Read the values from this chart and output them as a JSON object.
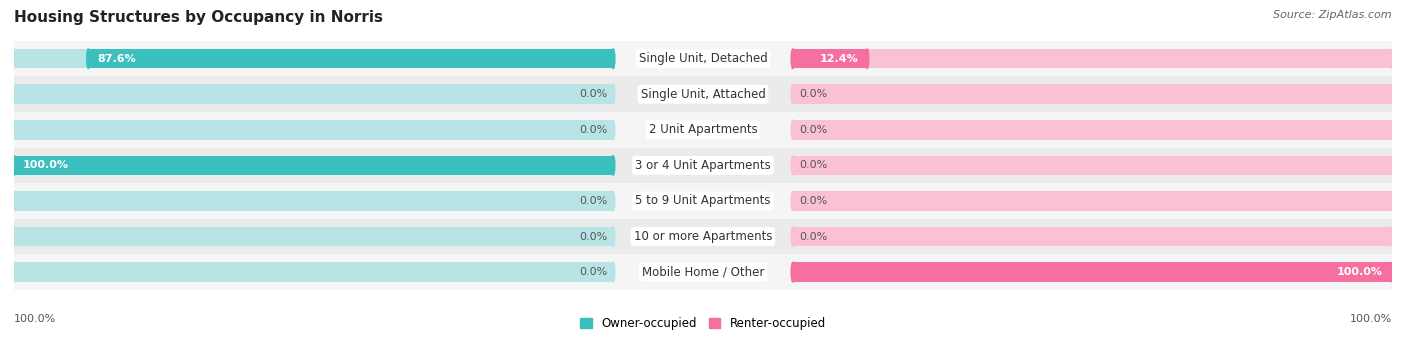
{
  "title": "Housing Structures by Occupancy in Norris",
  "source": "Source: ZipAtlas.com",
  "categories": [
    "Single Unit, Detached",
    "Single Unit, Attached",
    "2 Unit Apartments",
    "3 or 4 Unit Apartments",
    "5 to 9 Unit Apartments",
    "10 or more Apartments",
    "Mobile Home / Other"
  ],
  "owner_values": [
    87.6,
    0.0,
    0.0,
    100.0,
    0.0,
    0.0,
    0.0
  ],
  "renter_values": [
    12.4,
    0.0,
    0.0,
    0.0,
    0.0,
    0.0,
    100.0
  ],
  "owner_color": "#3BBFBF",
  "renter_color": "#F570A0",
  "owner_bg_color": "#B8E4E6",
  "renter_bg_color": "#FAC0D4",
  "owner_label": "Owner-occupied",
  "renter_label": "Renter-occupied",
  "bg_color": "#FFFFFF",
  "row_bg_even": "#F5F5F5",
  "row_bg_odd": "#EBEBEB",
  "max_val": 100.0,
  "title_fontsize": 11,
  "label_fontsize": 8.5,
  "value_fontsize": 8,
  "source_fontsize": 8
}
